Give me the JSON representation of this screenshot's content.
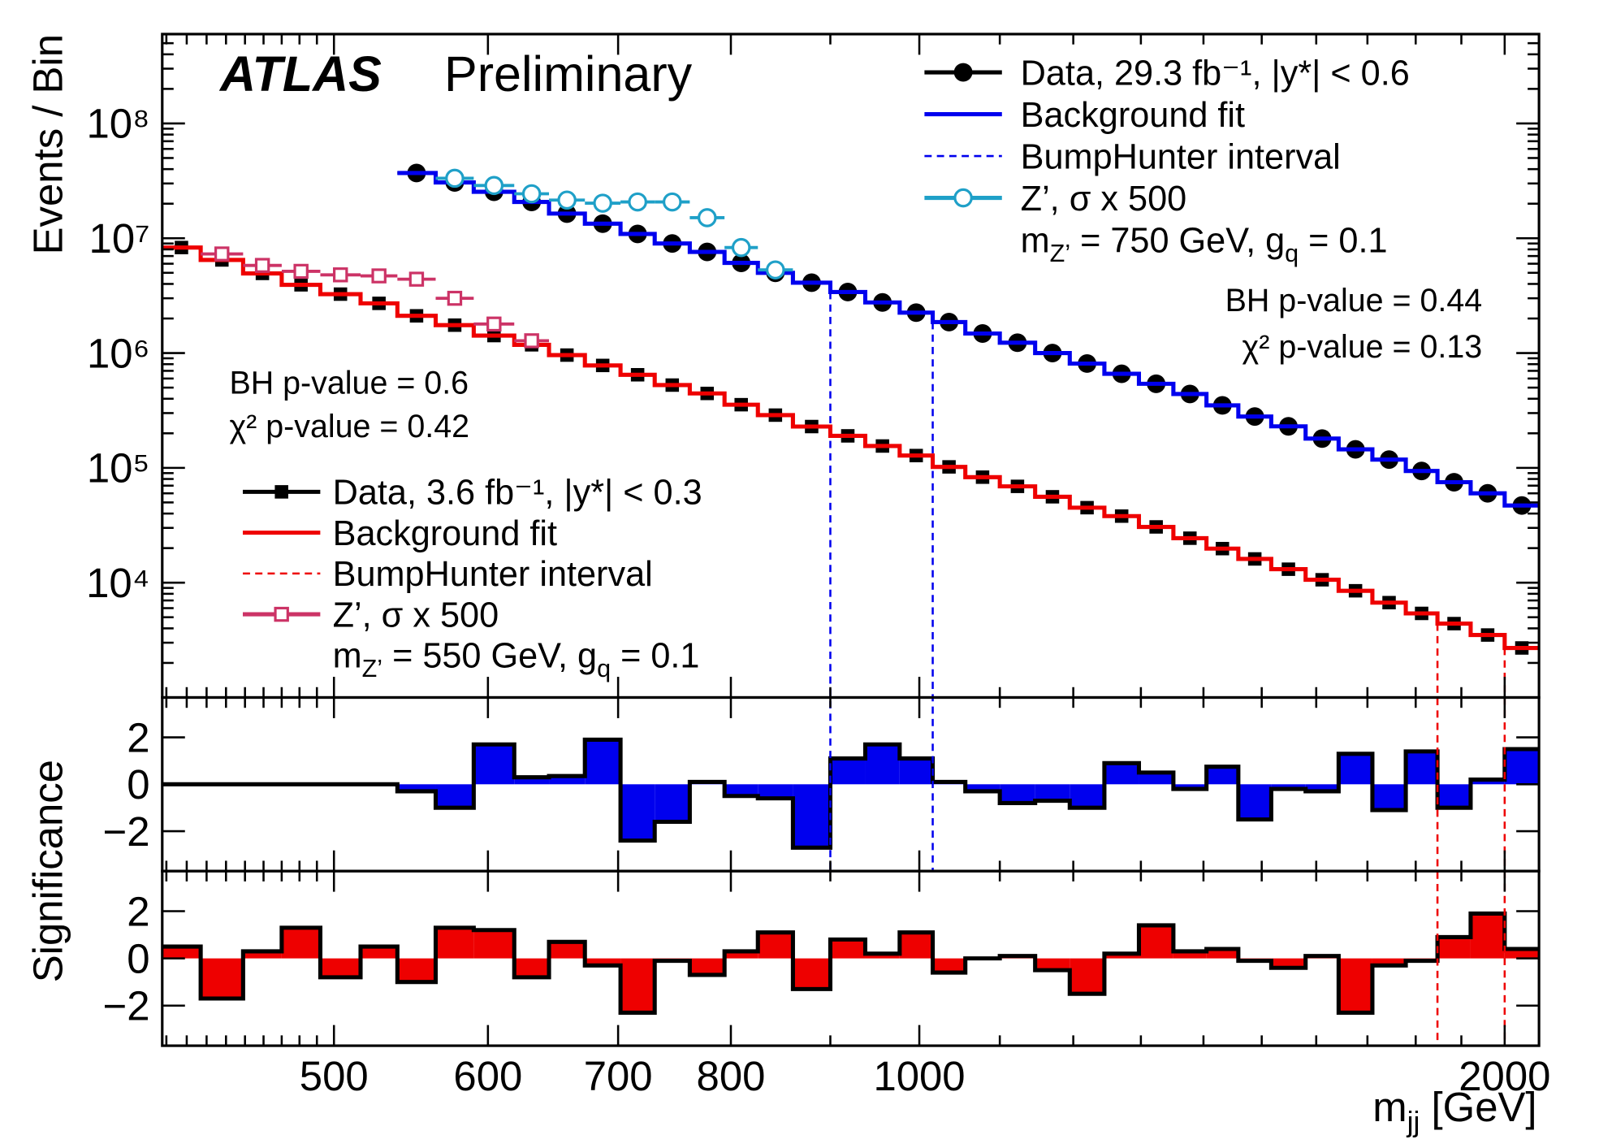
{
  "chart_data": [
    {
      "type": "histogram",
      "label": "ATLAS",
      "sublabel": "Preliminary",
      "ylabel": "Events / Bin",
      "xlabel": [
        {
          "text": "m"
        },
        {
          "text": "jj",
          "sub": true
        },
        {
          "text": " [GeV]"
        }
      ],
      "log_x": true,
      "log_y": true,
      "bins": [
        408,
        427,
        449,
        470,
        492,
        516,
        539,
        564,
        590,
        619,
        645,
        673,
        702,
        731,
        762,
        794,
        826,
        861,
        900,
        938,
        977,
        1016,
        1056,
        1100,
        1147,
        1195,
        1245,
        1297,
        1351,
        1405,
        1459,
        1517,
        1580,
        1643,
        1710,
        1779,
        1847,
        1921,
        2000,
        2083
      ],
      "xlim": [
        408,
        2083
      ],
      "xticks": [
        500,
        600,
        700,
        800,
        1000,
        2000
      ],
      "xminorticks": [
        410,
        420,
        430,
        440,
        450,
        460,
        470,
        480,
        490,
        900,
        1100,
        1200,
        1300,
        1400,
        1500,
        1600,
        1700,
        1800,
        1900
      ],
      "ylim": [
        1000,
        600000000
      ],
      "yticks": [
        {
          "value": 10000,
          "label": "10⁴"
        },
        {
          "value": 100000,
          "label": "10⁵"
        },
        {
          "value": 1000000,
          "label": "10⁶"
        },
        {
          "value": 10000000,
          "label": "10⁷"
        },
        {
          "value": 100000000,
          "label": "10⁸"
        }
      ],
      "yminorticks": [
        2000,
        3000,
        4000,
        5000,
        6000,
        7000,
        8000,
        9000,
        20000,
        30000,
        40000,
        50000,
        60000,
        70000,
        80000,
        90000,
        200000,
        300000,
        400000,
        500000,
        600000,
        700000,
        800000,
        900000,
        2000000,
        3000000,
        4000000,
        5000000,
        6000000,
        7000000,
        8000000,
        9000000,
        20000000,
        30000000,
        40000000,
        50000000,
        60000000,
        70000000,
        80000000,
        90000000,
        200000000,
        300000000,
        400000000,
        500000000
      ],
      "annotations": [
        "BH p-value = 0.44",
        "χ² p-value = 0.13",
        "BH p-value = 0.6",
        "χ² p-value = 0.42"
      ],
      "series": [
        {
          "name": "Data, 29.3 fb⁻¹, |y*| < 0.6",
          "style": "points",
          "marker": "circle",
          "color": "#000000",
          "legend": "upper right",
          "values": [
            null,
            null,
            null,
            null,
            null,
            null,
            37000000,
            30600000,
            25400000,
            20700000,
            16400000,
            13400000,
            10900000,
            9000000,
            7600000,
            6100000,
            5000000,
            4100000,
            3400000,
            2760000,
            2250000,
            1860000,
            1480000,
            1230000,
            1000000,
            810000,
            660000,
            540000,
            440000,
            350000,
            280000,
            230000,
            180000,
            145000,
            118000,
            94000,
            75000,
            60000,
            47000
          ]
        },
        {
          "name": "Background fit",
          "style": "step",
          "color": "#0000ee",
          "legend": "upper right",
          "values": [
            null,
            null,
            null,
            null,
            null,
            null,
            37000000,
            30600000,
            25400000,
            20700000,
            16400000,
            13400000,
            10900000,
            9000000,
            7600000,
            6100000,
            5000000,
            4100000,
            3400000,
            2760000,
            2250000,
            1860000,
            1480000,
            1230000,
            1000000,
            810000,
            660000,
            540000,
            440000,
            350000,
            280000,
            230000,
            180000,
            145000,
            118000,
            94000,
            75000,
            60000,
            47000
          ]
        },
        {
          "name": "BumpHunter interval",
          "style": "interval",
          "color": "#0000ee",
          "legend": "upper right",
          "x": [
            900,
            1016
          ]
        },
        {
          "name": "Z’, σ x 500",
          "style": "points",
          "marker": "open-circle",
          "color": "#1fa0c8",
          "legend": "upper right",
          "note": [
            {
              "text": "m"
            },
            {
              "text": "Z’",
              "sub": true
            },
            {
              "text": " = 750 GeV, g"
            },
            {
              "text": "q",
              "sub": true
            },
            {
              "text": " = 0.1"
            }
          ],
          "values": [
            null,
            null,
            null,
            null,
            null,
            null,
            null,
            33300000,
            28800000,
            24400000,
            21500000,
            20200000,
            20700000,
            20700000,
            15100000,
            8300000,
            5300000,
            null,
            null,
            null,
            null,
            null,
            null,
            null,
            null,
            null,
            null,
            null,
            null,
            null,
            null,
            null,
            null,
            null,
            null,
            null,
            null,
            null,
            null
          ]
        },
        {
          "name": "Data, 3.6 fb⁻¹, |y*| < 0.3",
          "style": "points",
          "marker": "square",
          "color": "#000000",
          "legend": "lower left",
          "values": [
            8300000,
            6470000,
            4940000,
            3930000,
            3260000,
            2710000,
            2110000,
            1750000,
            1420000,
            1180000,
            960000,
            780000,
            647000,
            526000,
            445000,
            355000,
            288000,
            229000,
            190000,
            155000,
            128000,
            102000,
            83000,
            69000,
            56000,
            45000,
            38000,
            30600,
            24400,
            19800,
            16100,
            13100,
            10600,
            8500,
            6700,
            5400,
            4400,
            3500,
            2700
          ]
        },
        {
          "name": "Background fit",
          "style": "step",
          "color": "#ee0000",
          "legend": "lower left",
          "values": [
            8300000,
            6470000,
            4940000,
            3930000,
            3260000,
            2710000,
            2110000,
            1750000,
            1420000,
            1180000,
            960000,
            780000,
            647000,
            526000,
            445000,
            355000,
            288000,
            229000,
            190000,
            155000,
            128000,
            102000,
            83000,
            69000,
            56000,
            45000,
            38000,
            30600,
            24400,
            19800,
            16100,
            13100,
            10600,
            8500,
            6700,
            5400,
            4400,
            3500,
            2700
          ]
        },
        {
          "name": "BumpHunter interval",
          "style": "interval",
          "color": "#ee0000",
          "legend": "lower left",
          "x": [
            1847,
            2000
          ]
        },
        {
          "name": "Z’, σ x 500",
          "style": "points",
          "marker": "open-square",
          "color": "#cc3366",
          "legend": "lower left",
          "note": [
            {
              "text": "m"
            },
            {
              "text": "Z’",
              "sub": true
            },
            {
              "text": " = 550 GeV, g"
            },
            {
              "text": "q",
              "sub": true
            },
            {
              "text": " = 0.1"
            }
          ],
          "values": [
            null,
            7300000,
            5800000,
            5150000,
            4800000,
            4700000,
            4400000,
            3000000,
            1790000,
            1280000,
            null,
            null,
            null,
            null,
            null,
            null,
            null,
            null,
            null,
            null,
            null,
            null,
            null,
            null,
            null,
            null,
            null,
            null,
            null,
            null,
            null,
            null,
            null,
            null,
            null,
            null,
            null,
            null,
            null
          ]
        }
      ]
    },
    {
      "type": "bar",
      "ylabel": "Significance",
      "color": "#0000ee",
      "ylim": [
        -3.7,
        3.7
      ],
      "yticks": [
        {
          "value": -2,
          "label": "−2"
        },
        0,
        2
      ],
      "values": [
        0,
        0,
        0,
        0,
        0,
        0,
        -0.3,
        -1.0,
        1.7,
        0.3,
        0.35,
        1.9,
        -2.4,
        -1.6,
        0.1,
        -0.5,
        -0.6,
        -2.7,
        1.1,
        1.7,
        1.1,
        0.1,
        -0.3,
        -0.8,
        -0.7,
        -1.0,
        0.9,
        0.5,
        -0.2,
        0.75,
        -1.5,
        -0.2,
        -0.3,
        1.3,
        -1.1,
        1.4,
        -1.0,
        0.2,
        1.5
      ]
    },
    {
      "type": "bar",
      "color": "#ee0000",
      "ylim": [
        -3.7,
        3.7
      ],
      "yticks": [
        {
          "value": -2,
          "label": "−2"
        },
        0,
        2
      ],
      "values": [
        0.5,
        -1.7,
        0.3,
        1.3,
        -0.8,
        0.5,
        -1.0,
        1.3,
        1.2,
        -0.8,
        0.7,
        -0.3,
        -2.3,
        -0.1,
        -0.7,
        0.3,
        1.1,
        -1.3,
        0.8,
        0.2,
        1.1,
        -0.6,
        0,
        0.1,
        -0.5,
        -1.5,
        0.2,
        1.4,
        0.3,
        0.4,
        -0.1,
        -0.4,
        0.1,
        -2.3,
        -0.3,
        -0.1,
        0.9,
        1.9,
        0.4
      ]
    }
  ]
}
